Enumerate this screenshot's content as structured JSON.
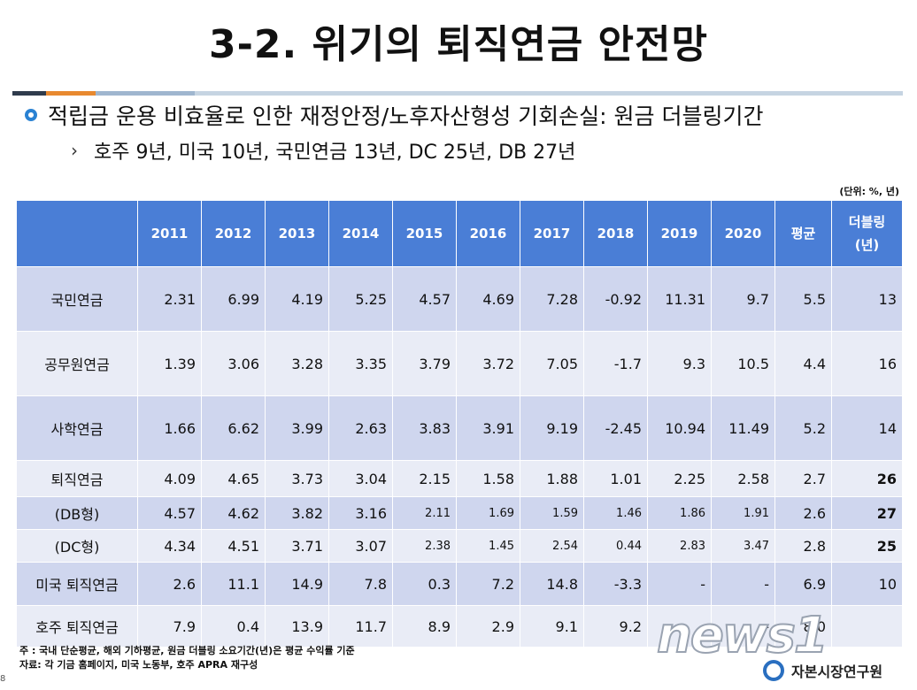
{
  "title": "3-2. 위기의 퇴직연금 안전망",
  "colors": {
    "rule": [
      "#2f3b4c",
      "#e8892f",
      "#9fb6cf",
      "#c6d4e2"
    ],
    "header_bg": "#4a7ed6",
    "row_even": "#cfd6ee",
    "row_odd": "#e9ecf6",
    "bullet": "#2a82d3"
  },
  "bullet_main": "적립금 운용 비효율로 인한 재정안정/노후자산형성 기회손실: 원금 더블링기간",
  "bullet_sub": "호주 9년, 미국 10년, 국민연금 13년, DC 25년, DB 27년",
  "unit": "(단위: %, 년)",
  "table": {
    "headers": [
      "",
      "2011",
      "2012",
      "2013",
      "2014",
      "2015",
      "2016",
      "2017",
      "2018",
      "2019",
      "2020",
      "평균",
      "더블링\n(년)"
    ],
    "rows": [
      [
        "국민연금",
        "2.31",
        "6.99",
        "4.19",
        "5.25",
        "4.57",
        "4.69",
        "7.28",
        "-0.92",
        "11.31",
        "9.7",
        "5.5",
        "13"
      ],
      [
        "공무원연금",
        "1.39",
        "3.06",
        "3.28",
        "3.35",
        "3.79",
        "3.72",
        "7.05",
        "-1.7",
        "9.3",
        "10.5",
        "4.4",
        "16"
      ],
      [
        "사학연금",
        "1.66",
        "6.62",
        "3.99",
        "2.63",
        "3.83",
        "3.91",
        "9.19",
        "-2.45",
        "10.94",
        "11.49",
        "5.2",
        "14"
      ],
      [
        "퇴직연금",
        "4.09",
        "4.65",
        "3.73",
        "3.04",
        "2.15",
        "1.58",
        "1.88",
        "1.01",
        "2.25",
        "2.58",
        "2.7",
        "26"
      ],
      [
        "(DB형)",
        "4.57",
        "4.62",
        "3.82",
        "3.16",
        "2.11",
        "1.69",
        "1.59",
        "1.46",
        "1.86",
        "1.91",
        "2.6",
        "27"
      ],
      [
        "(DC형)",
        "4.34",
        "4.51",
        "3.71",
        "3.07",
        "2.38",
        "1.45",
        "2.54",
        "0.44",
        "2.83",
        "3.47",
        "2.8",
        "25"
      ],
      [
        "미국 퇴직연금",
        "2.6",
        "11.1",
        "14.9",
        "7.8",
        "0.3",
        "7.2",
        "14.8",
        "-3.3",
        "-",
        "-",
        "6.9",
        "10"
      ],
      [
        "호주 퇴직연금",
        "7.9",
        "0.4",
        "13.9",
        "11.7",
        "8.9",
        "2.9",
        "9.1",
        "9.2",
        "-",
        "-",
        "8.0",
        ""
      ]
    ]
  },
  "notes": [
    "주    : 국내 단순평균, 해외 기하평균, 원금 더블링 소요기간(년)은 평균 수익률 기준",
    "자료: 각 기금 홈페이지, 미국 노동부, 호주 APRA 재구성"
  ],
  "page_number": "8",
  "watermark": "news1",
  "org_name": "자본시장연구원"
}
